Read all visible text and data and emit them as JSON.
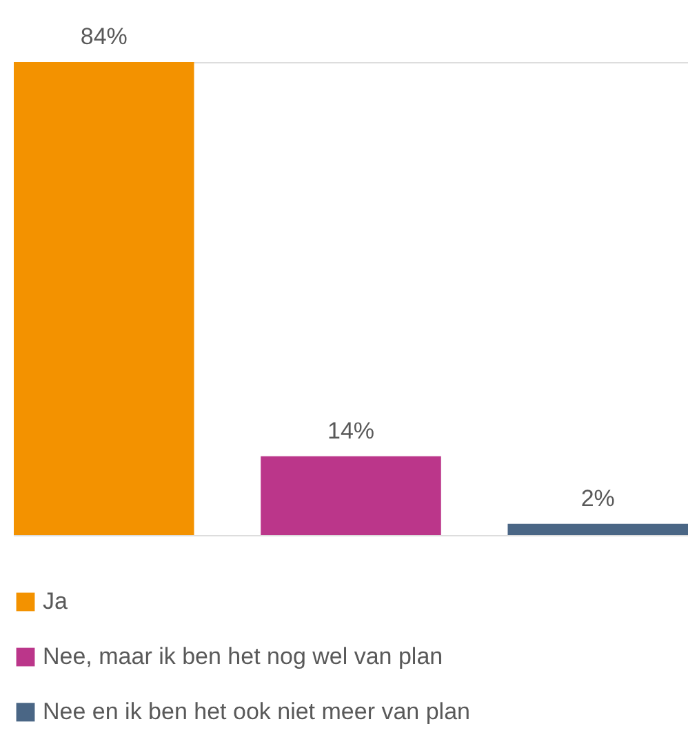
{
  "chart_data": {
    "type": "bar",
    "categories": [
      null
    ],
    "series": [
      {
        "name": "Ja",
        "color": "#f39200",
        "values": [
          84
        ],
        "value_labels": [
          "84%"
        ]
      },
      {
        "name": "Nee, maar ik ben het nog wel van plan",
        "color": "#bb368a",
        "values": [
          14
        ],
        "value_labels": [
          "14%"
        ]
      },
      {
        "name": "Nee en ik ben het ook niet meer van plan",
        "color": "#4a6685",
        "values": [
          2
        ],
        "value_labels": [
          "2%"
        ]
      }
    ],
    "ylim": [
      0,
      84
    ],
    "tick_labels": false,
    "grid": false,
    "legend": "bottom"
  }
}
